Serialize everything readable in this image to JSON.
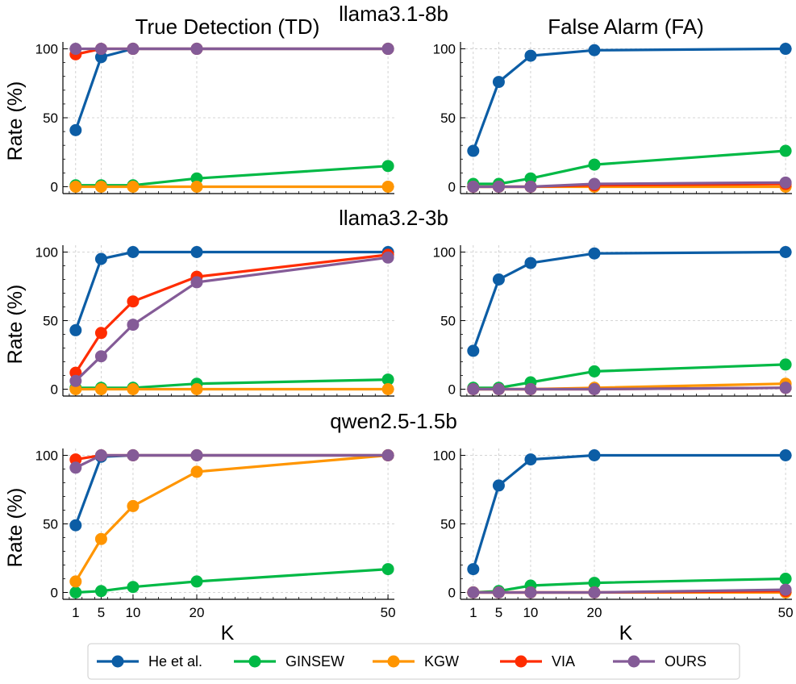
{
  "figure": {
    "column_titles": [
      "True Detection (TD)",
      "False Alarm (FA)"
    ],
    "row_titles": [
      "llama3.1-8b",
      "llama3.2-3b",
      "qwen2.5-1.5b"
    ],
    "ylabel": "Rate (%)",
    "xlabel": "K"
  },
  "chart_data": {
    "type": "line",
    "x": [
      1,
      5,
      10,
      20,
      50
    ],
    "x_ticks": [
      "1",
      "5",
      "10",
      "20",
      "50"
    ],
    "y_ticks": [
      "0",
      "50",
      "100"
    ],
    "xlim": [
      -1,
      51
    ],
    "ylim": [
      -5,
      105
    ],
    "grid": true,
    "legend_placement": "bottom-center",
    "series_styles": [
      {
        "name": "He et al.",
        "color": "#0C5DA5"
      },
      {
        "name": "GINSEW",
        "color": "#00B945"
      },
      {
        "name": "KGW",
        "color": "#FF9500"
      },
      {
        "name": "VIA",
        "color": "#FF2C00"
      },
      {
        "name": "OURS",
        "color": "#845B97"
      }
    ],
    "panels": [
      {
        "model": "llama3.1-8b",
        "metric": "True Detection (TD)",
        "series": [
          {
            "name": "He et al.",
            "values": [
              41,
              94,
              100,
              100,
              100
            ]
          },
          {
            "name": "GINSEW",
            "values": [
              1,
              1,
              1,
              6,
              15
            ]
          },
          {
            "name": "KGW",
            "values": [
              0,
              0,
              0,
              0,
              0
            ]
          },
          {
            "name": "VIA",
            "values": [
              96,
              100,
              100,
              100,
              100
            ]
          },
          {
            "name": "OURS",
            "values": [
              100,
              100,
              100,
              100,
              100
            ]
          }
        ]
      },
      {
        "model": "llama3.1-8b",
        "metric": "False Alarm (FA)",
        "series": [
          {
            "name": "He et al.",
            "values": [
              26,
              76,
              95,
              99,
              100
            ]
          },
          {
            "name": "GINSEW",
            "values": [
              2,
              2,
              6,
              16,
              26
            ]
          },
          {
            "name": "KGW",
            "values": [
              0,
              0,
              0,
              0,
              0
            ]
          },
          {
            "name": "VIA",
            "values": [
              0,
              0,
              0,
              1,
              2
            ]
          },
          {
            "name": "OURS",
            "values": [
              0,
              0,
              0,
              2,
              3
            ]
          }
        ]
      },
      {
        "model": "llama3.2-3b",
        "metric": "True Detection (TD)",
        "series": [
          {
            "name": "He et al.",
            "values": [
              43,
              95,
              100,
              100,
              100
            ]
          },
          {
            "name": "GINSEW",
            "values": [
              1,
              1,
              1,
              4,
              7
            ]
          },
          {
            "name": "KGW",
            "values": [
              0,
              0,
              0,
              0,
              0
            ]
          },
          {
            "name": "VIA",
            "values": [
              12,
              41,
              64,
              82,
              98
            ]
          },
          {
            "name": "OURS",
            "values": [
              6,
              24,
              47,
              78,
              96
            ]
          }
        ]
      },
      {
        "model": "llama3.2-3b",
        "metric": "False Alarm (FA)",
        "series": [
          {
            "name": "He et al.",
            "values": [
              28,
              80,
              92,
              99,
              100
            ]
          },
          {
            "name": "GINSEW",
            "values": [
              1,
              1,
              5,
              13,
              18
            ]
          },
          {
            "name": "KGW",
            "values": [
              0,
              0,
              0,
              1,
              4
            ]
          },
          {
            "name": "VIA",
            "values": [
              0,
              0,
              0,
              0,
              1
            ]
          },
          {
            "name": "OURS",
            "values": [
              0,
              0,
              0,
              0,
              1
            ]
          }
        ]
      },
      {
        "model": "qwen2.5-1.5b",
        "metric": "True Detection (TD)",
        "series": [
          {
            "name": "He et al.",
            "values": [
              49,
              99,
              100,
              100,
              100
            ]
          },
          {
            "name": "GINSEW",
            "values": [
              0,
              1,
              4,
              8,
              17
            ]
          },
          {
            "name": "KGW",
            "values": [
              8,
              39,
              63,
              88,
              100
            ]
          },
          {
            "name": "VIA",
            "values": [
              97,
              100,
              100,
              100,
              100
            ]
          },
          {
            "name": "OURS",
            "values": [
              91,
              100,
              100,
              100,
              100
            ]
          }
        ]
      },
      {
        "model": "qwen2.5-1.5b",
        "metric": "False Alarm (FA)",
        "series": [
          {
            "name": "He et al.",
            "values": [
              17,
              78,
              97,
              100,
              100
            ]
          },
          {
            "name": "GINSEW",
            "values": [
              0,
              1,
              5,
              7,
              10
            ]
          },
          {
            "name": "KGW",
            "values": [
              0,
              0,
              0,
              0,
              0
            ]
          },
          {
            "name": "VIA",
            "values": [
              0,
              0,
              0,
              0,
              1
            ]
          },
          {
            "name": "OURS",
            "values": [
              0,
              0,
              0,
              0,
              2
            ]
          }
        ]
      }
    ]
  }
}
